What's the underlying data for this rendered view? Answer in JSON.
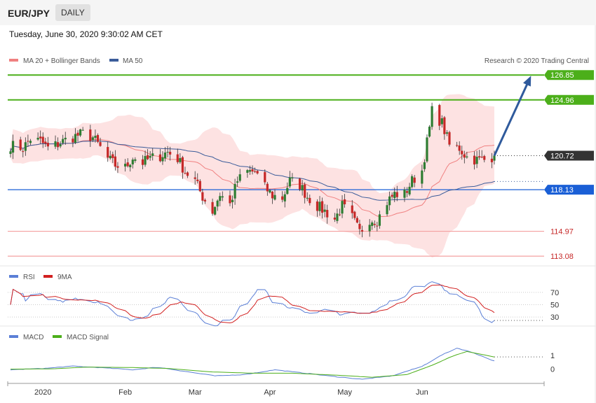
{
  "header": {
    "symbol": "EUR/JPY",
    "timeframe": "DAILY"
  },
  "datetime": "Tuesday, June 30, 2020 9:30:02 AM CET",
  "copyright": "Research © 2020 Trading Central",
  "colors": {
    "bullish": "#2e7d32",
    "bearish": "#c62828",
    "bands": "#fde2e2",
    "ma20": "#f08080",
    "ma50": "#3b5c9a",
    "support": "#1a5fd6",
    "target": "#4caf1a",
    "red_level": "#c62828",
    "last": "#333333",
    "arrow": "#2f5a9c",
    "rsi": "#5b7fd6",
    "rsi_ma": "#d22020",
    "macd": "#5b7fd6",
    "macd_signal": "#4caf1a"
  },
  "chart_data": [
    {
      "type": "candlestick",
      "title": "",
      "legend": [
        {
          "name": "MA 20 + Bollinger Bands",
          "color": "#f08080"
        },
        {
          "name": "MA 50",
          "color": "#3b5c9a"
        }
      ],
      "x_labels": [
        "2020",
        "Feb",
        "Mar",
        "Apr",
        "May",
        "Jun"
      ],
      "date_range": [
        "2019-12-19",
        "2020-06-30"
      ],
      "ylim": [
        112.5,
        127.5
      ],
      "levels": [
        {
          "value": "126.85",
          "kind": "target"
        },
        {
          "value": "124.96",
          "kind": "target"
        },
        {
          "value": "120.72",
          "kind": "last"
        },
        {
          "value": "118.13",
          "kind": "support"
        },
        {
          "value": "114.97",
          "kind": "resistance"
        },
        {
          "value": "113.08",
          "kind": "resistance"
        }
      ],
      "close_path": [
        [
          "2019-12-19",
          121.5
        ],
        [
          "2019-12-24",
          121.3
        ],
        [
          "2019-12-27",
          122.0
        ],
        [
          "2019-12-31",
          121.8
        ],
        [
          "2020-01-03",
          121.3
        ],
        [
          "2020-01-07",
          121.6
        ],
        [
          "2020-01-10",
          121.9
        ],
        [
          "2020-01-14",
          122.2
        ],
        [
          "2020-01-17",
          122.4
        ],
        [
          "2020-01-21",
          122.1
        ],
        [
          "2020-01-23",
          121.6
        ],
        [
          "2020-01-27",
          120.5
        ],
        [
          "2020-01-30",
          120.0
        ],
        [
          "2020-02-03",
          119.8
        ],
        [
          "2020-02-06",
          120.6
        ],
        [
          "2020-02-10",
          120.2
        ],
        [
          "2020-02-13",
          120.5
        ],
        [
          "2020-02-17",
          120.7
        ],
        [
          "2020-02-20",
          121.0
        ],
        [
          "2020-02-24",
          120.5
        ],
        [
          "2020-02-27",
          119.5
        ],
        [
          "2020-03-02",
          118.8
        ],
        [
          "2020-03-05",
          117.6
        ],
        [
          "2020-03-09",
          116.5
        ],
        [
          "2020-03-12",
          117.8
        ],
        [
          "2020-03-16",
          117.0
        ],
        [
          "2020-03-19",
          118.8
        ],
        [
          "2020-03-23",
          119.5
        ],
        [
          "2020-03-26",
          119.5
        ],
        [
          "2020-03-30",
          118.3
        ],
        [
          "2020-04-02",
          117.7
        ],
        [
          "2020-04-06",
          117.5
        ],
        [
          "2020-04-09",
          118.8
        ],
        [
          "2020-04-13",
          118.5
        ],
        [
          "2020-04-16",
          117.6
        ],
        [
          "2020-04-20",
          116.9
        ],
        [
          "2020-04-23",
          116.5
        ],
        [
          "2020-04-27",
          115.9
        ],
        [
          "2020-04-30",
          116.9
        ],
        [
          "2020-05-04",
          116.0
        ],
        [
          "2020-05-07",
          114.9
        ],
        [
          "2020-05-11",
          115.9
        ],
        [
          "2020-05-14",
          115.8
        ],
        [
          "2020-05-18",
          117.2
        ],
        [
          "2020-05-21",
          117.8
        ],
        [
          "2020-05-25",
          117.8
        ],
        [
          "2020-05-28",
          118.8
        ],
        [
          "2020-06-01",
          119.6
        ],
        [
          "2020-06-04",
          122.8
        ],
        [
          "2020-06-05",
          124.1
        ],
        [
          "2020-06-09",
          123.2
        ],
        [
          "2020-06-12",
          121.5
        ],
        [
          "2020-06-16",
          121.3
        ],
        [
          "2020-06-19",
          120.6
        ],
        [
          "2020-06-23",
          120.4
        ],
        [
          "2020-06-26",
          120.4
        ],
        [
          "2020-06-30",
          120.72
        ]
      ],
      "forecast_arrow": {
        "from": [
          "2020-06-30",
          120.72
        ],
        "to": [
          "2020-07-14",
          126.5
        ]
      }
    },
    {
      "type": "line",
      "legend": [
        {
          "name": "RSI",
          "color": "#5b7fd6"
        },
        {
          "name": "9MA",
          "color": "#d22020"
        }
      ],
      "yticks": [
        "70",
        "50",
        "30"
      ],
      "ylim": [
        20,
        88
      ]
    },
    {
      "type": "line",
      "legend": [
        {
          "name": "MACD",
          "color": "#5b7fd6"
        },
        {
          "name": "MACD Signal",
          "color": "#4caf1a"
        }
      ],
      "yticks": [
        "1",
        "0"
      ],
      "ylim": [
        -0.9,
        2.2
      ],
      "macd_path": [
        [
          "2019-12-19",
          -0.05
        ],
        [
          "2020-01-01",
          0.05
        ],
        [
          "2020-01-13",
          0.22
        ],
        [
          "2020-01-25",
          0.1
        ],
        [
          "2020-02-06",
          -0.05
        ],
        [
          "2020-02-16",
          0.15
        ],
        [
          "2020-02-28",
          -0.2
        ],
        [
          "2020-03-10",
          -0.5
        ],
        [
          "2020-03-22",
          -0.4
        ],
        [
          "2020-04-03",
          -0.05
        ],
        [
          "2020-04-15",
          -0.3
        ],
        [
          "2020-04-27",
          -0.55
        ],
        [
          "2020-05-08",
          -0.75
        ],
        [
          "2020-05-20",
          -0.5
        ],
        [
          "2020-06-01",
          0.2
        ],
        [
          "2020-06-09",
          1.05
        ],
        [
          "2020-06-15",
          1.55
        ],
        [
          "2020-06-21",
          1.25
        ],
        [
          "2020-06-30",
          0.6
        ]
      ],
      "signal_path": [
        [
          "2019-12-19",
          0.0
        ],
        [
          "2020-01-05",
          0.02
        ],
        [
          "2020-01-18",
          0.15
        ],
        [
          "2020-02-05",
          0.12
        ],
        [
          "2020-02-20",
          0.05
        ],
        [
          "2020-03-08",
          -0.2
        ],
        [
          "2020-03-25",
          -0.3
        ],
        [
          "2020-04-10",
          -0.3
        ],
        [
          "2020-04-28",
          -0.45
        ],
        [
          "2020-05-12",
          -0.6
        ],
        [
          "2020-05-26",
          -0.4
        ],
        [
          "2020-06-06",
          0.35
        ],
        [
          "2020-06-13",
          0.95
        ],
        [
          "2020-06-19",
          1.3
        ],
        [
          "2020-06-30",
          0.9
        ]
      ]
    }
  ]
}
